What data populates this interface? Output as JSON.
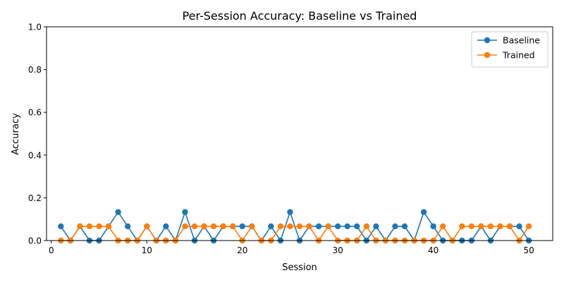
{
  "chart_data": {
    "type": "line",
    "title": "Per-Session Accuracy: Baseline vs Trained",
    "xlabel": "Session",
    "ylabel": "Accuracy",
    "xlim": [
      -0.5,
      52.5
    ],
    "ylim": [
      0.0,
      1.0
    ],
    "xticks": [
      0,
      10,
      20,
      30,
      40,
      50
    ],
    "yticks": [
      0.0,
      0.2,
      0.4,
      0.6,
      0.8,
      1.0
    ],
    "xtick_labels": [
      "0",
      "10",
      "20",
      "30",
      "40",
      "50"
    ],
    "ytick_labels": [
      "0.0",
      "0.2",
      "0.4",
      "0.6",
      "0.8",
      "1.0"
    ],
    "grid": false,
    "legend_position": "top-right",
    "x": [
      1,
      2,
      3,
      4,
      5,
      6,
      7,
      8,
      9,
      10,
      11,
      12,
      13,
      14,
      15,
      16,
      17,
      18,
      19,
      20,
      21,
      22,
      23,
      24,
      25,
      26,
      27,
      28,
      29,
      30,
      31,
      32,
      33,
      34,
      35,
      36,
      37,
      38,
      39,
      40,
      41,
      42,
      43,
      44,
      45,
      46,
      47,
      48,
      49,
      50
    ],
    "series": [
      {
        "name": "Baseline",
        "color": "#1f77b4",
        "values": [
          0.0667,
          0,
          0.0667,
          0,
          0,
          0.0667,
          0.1333,
          0.0667,
          0,
          0.0667,
          0,
          0.0667,
          0,
          0.1333,
          0,
          0.0667,
          0,
          0.0667,
          0.0667,
          0.0667,
          0.0667,
          0,
          0.0667,
          0,
          0.1333,
          0,
          0.0667,
          0.0667,
          0.0667,
          0.0667,
          0.0667,
          0.0667,
          0,
          0.0667,
          0,
          0.0667,
          0.0667,
          0,
          0.1333,
          0.0667,
          0,
          0,
          0,
          0,
          0.0667,
          0,
          0.0667,
          0.0667,
          0.0667,
          0
        ]
      },
      {
        "name": "Trained",
        "color": "#ff7f0e",
        "values": [
          0,
          0,
          0.0667,
          0.0667,
          0.0667,
          0.0667,
          0,
          0,
          0,
          0.0667,
          0,
          0,
          0,
          0.0667,
          0.0667,
          0.0667,
          0.0667,
          0.0667,
          0.0667,
          0,
          0.0667,
          0,
          0,
          0.0667,
          0.0667,
          0.0667,
          0.0667,
          0,
          0.0667,
          0,
          0,
          0,
          0.0667,
          0,
          0,
          0,
          0,
          0,
          0,
          0,
          0.0667,
          0,
          0.0667,
          0.0667,
          0.0667,
          0.0667,
          0.0667,
          0.0667,
          0,
          0.0667
        ]
      }
    ]
  }
}
